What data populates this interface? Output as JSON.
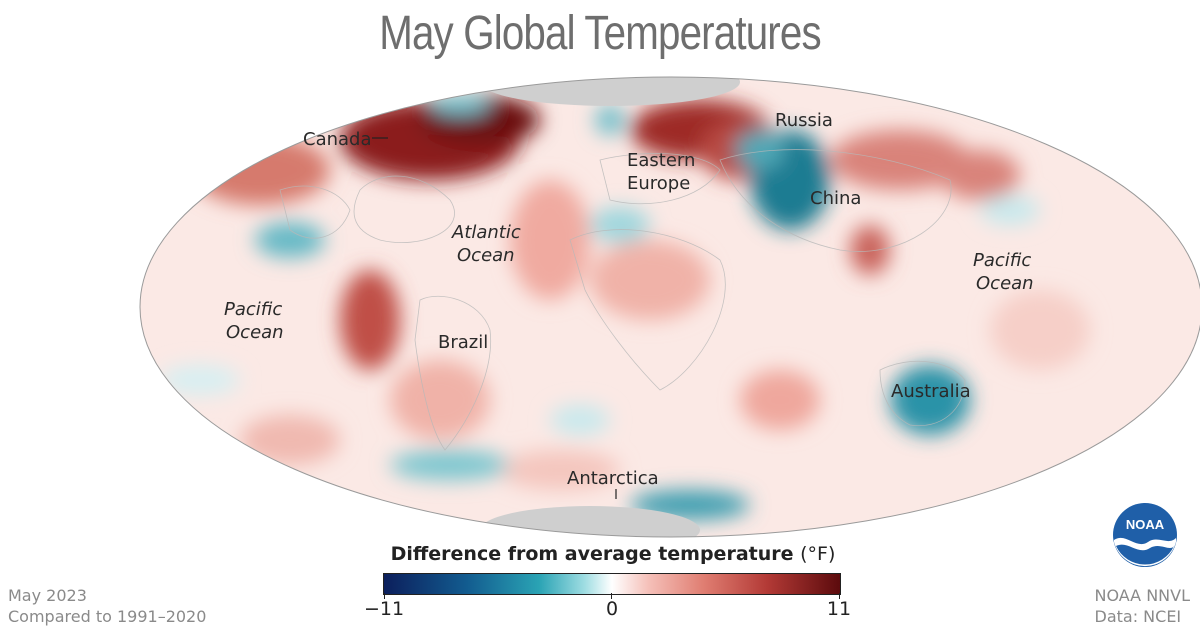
{
  "title": "May Global Temperatures",
  "map": {
    "labels": {
      "canada": "Canada",
      "russia": "Russia",
      "eastern_europe_1": "Eastern",
      "eastern_europe_2": "Europe",
      "china": "China",
      "atlantic_1": "Atlantic",
      "atlantic_2": "Ocean",
      "pacific_east_1": "Pacific",
      "pacific_east_2": "Ocean",
      "pacific_west_1": "Pacific",
      "pacific_west_2": "Ocean",
      "brazil": "Brazil",
      "australia": "Australia",
      "antarctica": "Antarctica"
    }
  },
  "legend": {
    "title": "Difference from average temperature",
    "unit": "(°F)",
    "min_label": "−11",
    "mid_label": "0",
    "max_label": "11",
    "colors": {
      "cold": "#0c1f5c",
      "neutral": "#ffffff",
      "warm": "#5c0b0d"
    }
  },
  "footer": {
    "period": "May 2023",
    "baseline": "Compared to 1991–2020",
    "source_1": "NOAA NNVL",
    "source_2": "Data: NCEI"
  },
  "logo": {
    "text": "NOAA",
    "icon": "noaa-logo-icon"
  }
}
